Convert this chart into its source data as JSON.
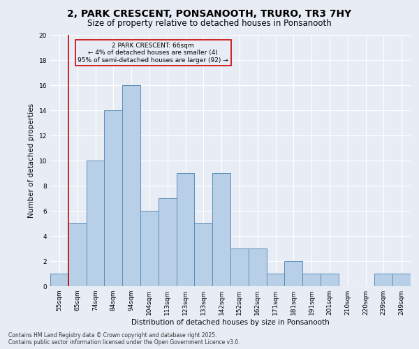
{
  "title_line1": "2, PARK CRESCENT, PONSANOOTH, TRURO, TR3 7HY",
  "title_line2": "Size of property relative to detached houses in Ponsanooth",
  "xlabel": "Distribution of detached houses by size in Ponsanooth",
  "ylabel": "Number of detached properties",
  "categories": [
    "55sqm",
    "65sqm",
    "74sqm",
    "84sqm",
    "94sqm",
    "104sqm",
    "113sqm",
    "123sqm",
    "133sqm",
    "142sqm",
    "152sqm",
    "162sqm",
    "171sqm",
    "181sqm",
    "191sqm",
    "201sqm",
    "210sqm",
    "220sqm",
    "239sqm",
    "249sqm"
  ],
  "values": [
    1,
    5,
    10,
    14,
    16,
    6,
    7,
    9,
    5,
    9,
    3,
    3,
    1,
    2,
    1,
    1,
    0,
    0,
    1,
    1
  ],
  "bar_color": "#b8cfe8",
  "bar_edge_color": "#5b8db8",
  "property_line_color": "#cc0000",
  "property_line_index": 1,
  "annotation_text_line1": "2 PARK CRESCENT: 66sqm",
  "annotation_text_line2": "← 4% of detached houses are smaller (4)",
  "annotation_text_line3": "95% of semi-detached houses are larger (92) →",
  "annotation_box_color": "#cc0000",
  "ylim": [
    0,
    20
  ],
  "yticks": [
    0,
    2,
    4,
    6,
    8,
    10,
    12,
    14,
    16,
    18,
    20
  ],
  "background_color": "#e8edf5",
  "grid_color": "#ffffff",
  "footer_line1": "Contains HM Land Registry data © Crown copyright and database right 2025.",
  "footer_line2": "Contains public sector information licensed under the Open Government Licence v3.0.",
  "title_fontsize": 10,
  "subtitle_fontsize": 8.5,
  "axis_label_fontsize": 7.5,
  "tick_fontsize": 6.5,
  "annotation_fontsize": 6.5,
  "footer_fontsize": 5.5
}
